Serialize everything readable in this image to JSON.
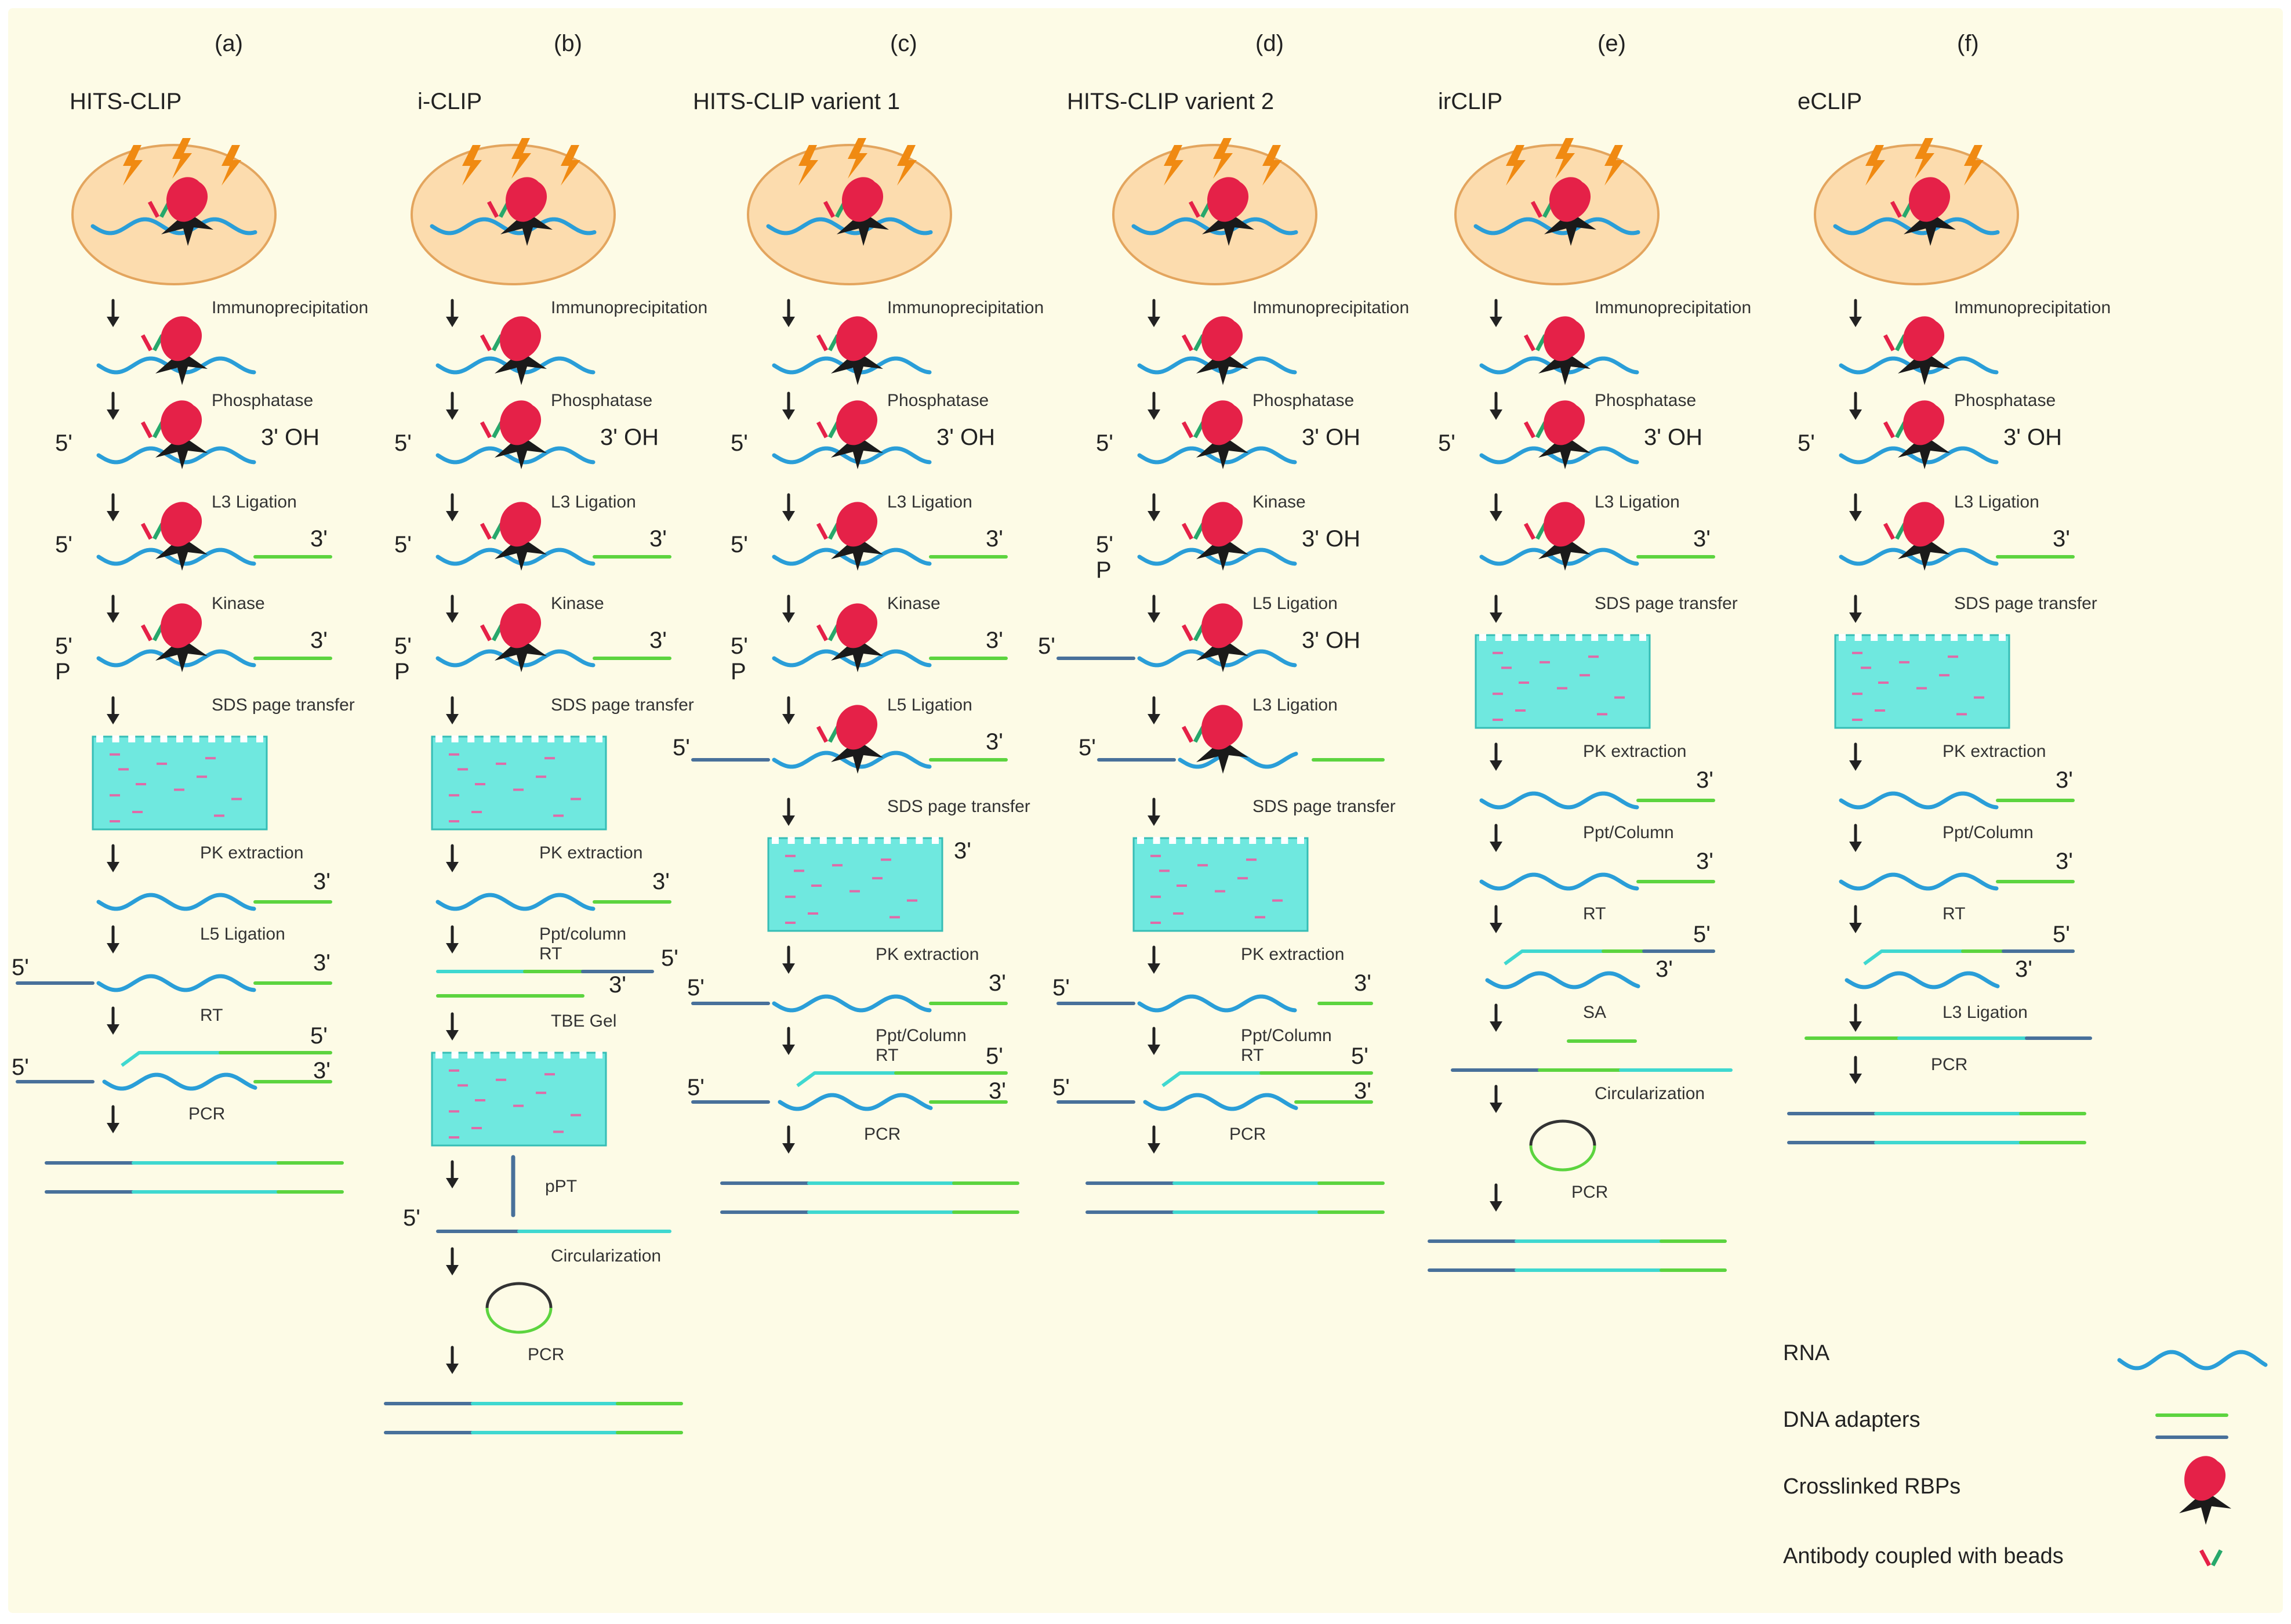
{
  "columns": [
    {
      "letter": "(a)",
      "title": "HITS-CLIP",
      "steps": [
        {
          "t": "cell"
        },
        {
          "t": "ab",
          "label": "Immunoprecipitation"
        },
        {
          "t": "rna",
          "label": "Phosphatase",
          "left": "5'",
          "right": "3' OH"
        },
        {
          "t": "rna",
          "label": "L3 Ligation",
          "left": "5'",
          "right": "3'",
          "adapter3": true
        },
        {
          "t": "rna",
          "label": "Kinase",
          "left": "5'",
          "leftp": "P",
          "right": "3'",
          "adapter3": true
        },
        {
          "t": "gel",
          "label": "SDS page transfer"
        },
        {
          "t": "bare",
          "label": "PK extraction",
          "right": "3'",
          "adapter3": true
        },
        {
          "t": "bare",
          "label": "L5 Ligation",
          "left": "5'",
          "right": "3'",
          "adapter3": true,
          "adapter5": true
        },
        {
          "t": "rt",
          "label": "RT",
          "top": "5'",
          "left": "5'",
          "right": "3'"
        },
        {
          "t": "pcr",
          "label": "PCR"
        }
      ]
    },
    {
      "letter": "(b)",
      "title": "i-CLIP",
      "steps": [
        {
          "t": "cell"
        },
        {
          "t": "ab",
          "label": "Immunoprecipitation"
        },
        {
          "t": "rna",
          "label": "Phosphatase",
          "left": "5'",
          "right": "3' OH"
        },
        {
          "t": "rna",
          "label": "L3 Ligation",
          "left": "5'",
          "right": "3'",
          "adapter3": true
        },
        {
          "t": "rna",
          "label": "Kinase",
          "left": "5'",
          "leftp": "P",
          "right": "3'",
          "adapter3": true
        },
        {
          "t": "gel",
          "label": "SDS page transfer"
        },
        {
          "t": "bare",
          "label": "PK extraction",
          "right": "3'",
          "adapter3": true
        },
        {
          "t": "cdna",
          "label": "Ppt/column",
          "label2": "RT",
          "top": "5'",
          "right": "3'"
        },
        {
          "t": "gel",
          "label": "TBE Gel"
        },
        {
          "t": "ppt",
          "label": "pPT",
          "left": "5'"
        },
        {
          "t": "circ",
          "label": "Circularization"
        },
        {
          "t": "pcr",
          "label": "PCR"
        }
      ]
    },
    {
      "letter": "(c)",
      "title": "HITS-CLIP varient 1",
      "steps": [
        {
          "t": "cell"
        },
        {
          "t": "ab",
          "label": "Immunoprecipitation"
        },
        {
          "t": "rna",
          "label": "Phosphatase",
          "left": "5'",
          "right": "3' OH"
        },
        {
          "t": "rna",
          "label": "L3 Ligation",
          "left": "5'",
          "right": "3'",
          "adapter3": true
        },
        {
          "t": "rna",
          "label": "Kinase",
          "left": "5'",
          "leftp": "P",
          "right": "3'",
          "adapter3": true
        },
        {
          "t": "rna",
          "label": "L5 Ligation",
          "left": "5'",
          "right": "3'",
          "adapter3": true,
          "adapter5": true
        },
        {
          "t": "gel",
          "label": "SDS page transfer",
          "side": "3'"
        },
        {
          "t": "bare",
          "label": "PK extraction",
          "left": "5'",
          "right": "3'",
          "adapter3": true,
          "adapter5": true
        },
        {
          "t": "rt",
          "label": "Ppt/Column",
          "label2": "RT",
          "top": "5'",
          "left": "5'",
          "right": "3'"
        },
        {
          "t": "pcr",
          "label": "PCR"
        }
      ]
    },
    {
      "letter": "(d)",
      "title": "HITS-CLIP varient 2",
      "steps": [
        {
          "t": "cell"
        },
        {
          "t": "ab",
          "label": "Immunoprecipitation"
        },
        {
          "t": "rna",
          "label": "Phosphatase",
          "left": "5'",
          "right": "3' OH"
        },
        {
          "t": "rna",
          "label": "Kinase",
          "left": "5'",
          "leftp": "P",
          "right": "3' OH"
        },
        {
          "t": "rna",
          "label": "L5 Ligation",
          "left": "5'",
          "right": "3' OH",
          "adapter5": true
        },
        {
          "t": "rna",
          "label": "L3 Ligation",
          "left": "5'",
          "adapter3": true,
          "adapter5": true,
          "gap": true
        },
        {
          "t": "gel",
          "label": "SDS page transfer"
        },
        {
          "t": "bare",
          "label": "PK extraction",
          "left": "5'",
          "right": "3'",
          "adapter3": true,
          "adapter5": true,
          "gap": true
        },
        {
          "t": "rt",
          "label": "Ppt/Column",
          "label2": "RT",
          "top": "5'",
          "left": "5'",
          "right": "3'"
        },
        {
          "t": "pcr",
          "label": "PCR"
        }
      ]
    },
    {
      "letter": "(e)",
      "title": "irCLIP",
      "steps": [
        {
          "t": "cell"
        },
        {
          "t": "ab",
          "label": "Immunoprecipitation"
        },
        {
          "t": "rna",
          "label": "Phosphatase",
          "left": "5'",
          "right": "3' OH"
        },
        {
          "t": "rna",
          "label": "L3 Ligation",
          "right": "3'",
          "adapter3": true
        },
        {
          "t": "gel",
          "label": "SDS page transfer"
        },
        {
          "t": "bare",
          "label": "PK extraction",
          "right": "3'",
          "adapter3": true
        },
        {
          "t": "bare",
          "label": "Ppt/Column",
          "right": "3'",
          "adapter3": true
        },
        {
          "t": "rtb",
          "label": "RT",
          "top": "5'",
          "right": "3'"
        },
        {
          "t": "sa",
          "label": "SA"
        },
        {
          "t": "circ",
          "label": "Circularization"
        },
        {
          "t": "pcr",
          "label": "PCR"
        }
      ]
    },
    {
      "letter": "(f)",
      "title": "eCLIP",
      "steps": [
        {
          "t": "cell"
        },
        {
          "t": "ab",
          "label": "Immunoprecipitation"
        },
        {
          "t": "rna",
          "label": "Phosphatase",
          "left": "5'",
          "right": "3' OH"
        },
        {
          "t": "rna",
          "label": "L3 Ligation",
          "right": "3'",
          "adapter3": true
        },
        {
          "t": "gel",
          "label": "SDS page transfer"
        },
        {
          "t": "bare",
          "label": "PK extraction",
          "right": "3'",
          "adapter3": true
        },
        {
          "t": "bare",
          "label": "Ppt/Column",
          "right": "3'",
          "adapter3": true
        },
        {
          "t": "rtb",
          "label": "RT",
          "top": "5'",
          "right": "3'"
        },
        {
          "t": "lig",
          "label": "L3 Ligation"
        },
        {
          "t": "pcr",
          "label": "PCR"
        }
      ]
    }
  ],
  "legend": [
    {
      "label": "RNA",
      "icon": "rna-wave-icon"
    },
    {
      "label": "DNA adapters",
      "icon": "dna-adapters-icon"
    },
    {
      "label": "Crosslinked RBPs",
      "icon": "rbp-icon"
    },
    {
      "label": "Antibody coupled with beads",
      "icon": "antibody-icon"
    }
  ],
  "colors": {
    "background": "#fdfbe6",
    "cell": "#fcdcae",
    "cell_border": "#e3a55e",
    "lightning": "#f08a12",
    "rna": "#2a9ed8",
    "green": "#5cd43f",
    "navy": "#48709a",
    "cyan": "#3fd8d0",
    "gel": "#6fe8df",
    "band": "#e06aa8",
    "rbp": "#e52148",
    "star": "#1a1a1a",
    "arrow": "#222"
  }
}
